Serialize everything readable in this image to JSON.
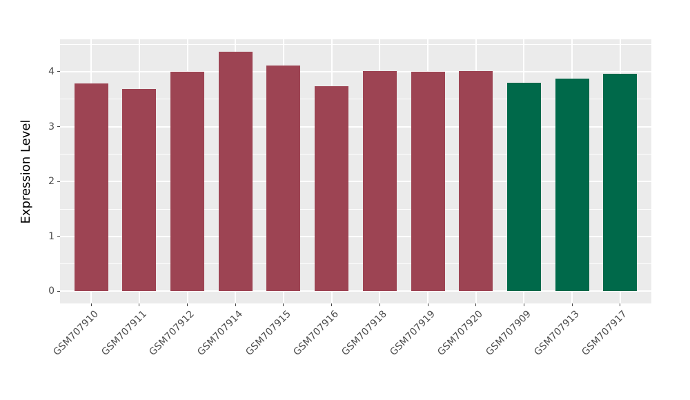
{
  "chart_data": {
    "type": "bar",
    "title": "",
    "xlabel": "",
    "ylabel": "Expression Level",
    "categories": [
      "GSM707910",
      "GSM707911",
      "GSM707912",
      "GSM707914",
      "GSM707915",
      "GSM707916",
      "GSM707918",
      "GSM707919",
      "GSM707920",
      "GSM707909",
      "GSM707913",
      "GSM707917"
    ],
    "values": [
      3.79,
      3.68,
      4.0,
      4.37,
      4.11,
      3.73,
      4.01,
      4.0,
      4.01,
      3.8,
      3.87,
      3.96
    ],
    "groups": [
      "red",
      "red",
      "red",
      "red",
      "red",
      "red",
      "red",
      "red",
      "red",
      "green",
      "green",
      "green"
    ],
    "group_colors": {
      "red": "#9D4453",
      "green": "#00694A"
    },
    "y_ticks": [
      0,
      1,
      2,
      3,
      4
    ],
    "ylim": [
      -0.22,
      4.59
    ],
    "x_tick_angle": -45,
    "grid": "on",
    "legend_position": "none",
    "colors": {
      "panel_background": "#EBEBEB",
      "grid_major": "#FFFFFF",
      "grid_minor": "#FFFFFF",
      "tick_label": "#4D4D4D",
      "tick_mark": "#444444",
      "axis_title": "#000000",
      "page_background": "#FFFFFF"
    }
  }
}
